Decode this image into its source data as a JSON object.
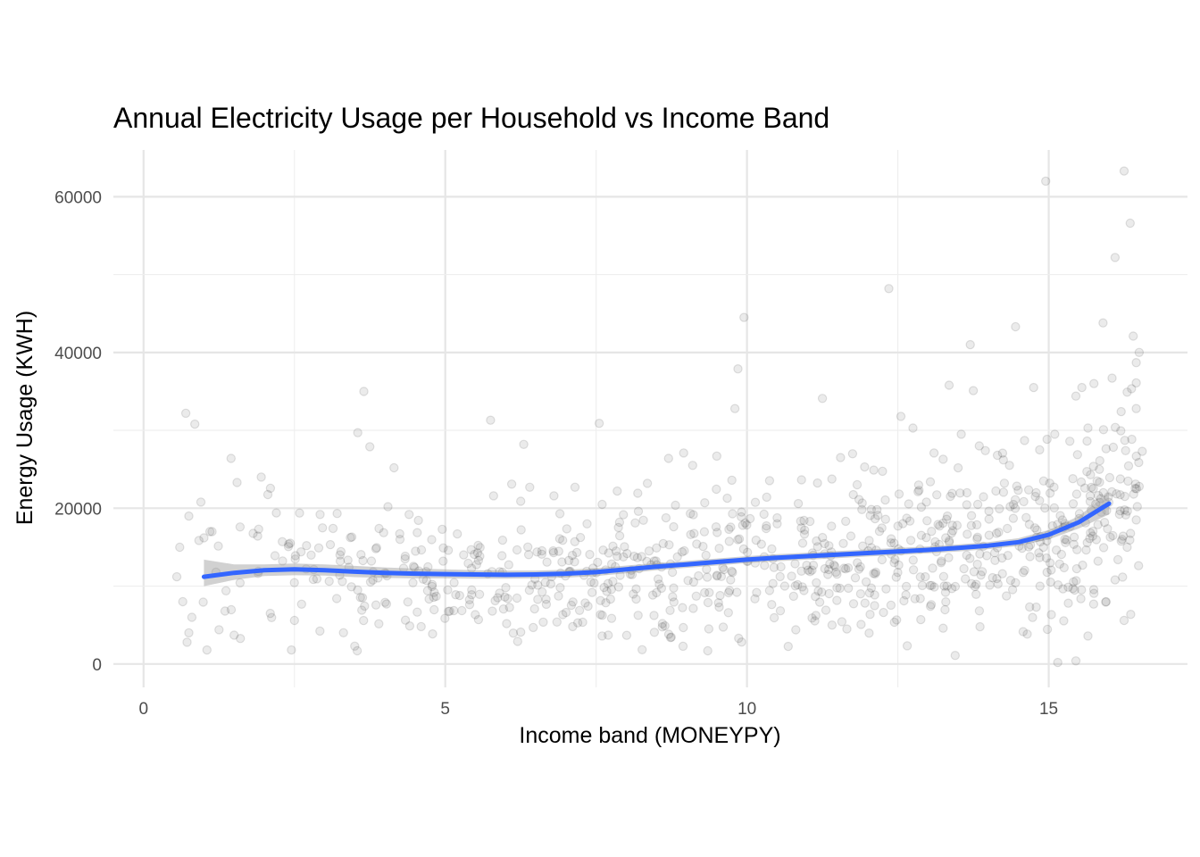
{
  "chart_data": {
    "type": "scatter",
    "title": "Annual Electricity Usage per Household vs Income Band",
    "xlabel": "Income band (MONEYPY)",
    "ylabel": "Energy Usage (KWH)",
    "xlim": [
      -0.5,
      17.3
    ],
    "ylim": [
      -3000,
      66000
    ],
    "x_ticks": [
      0,
      5,
      10,
      15
    ],
    "x_tick_labels": [
      "0",
      "5",
      "10",
      "15"
    ],
    "y_ticks": [
      0,
      20000,
      40000,
      60000
    ],
    "y_tick_labels": [
      "0",
      "20000",
      "40000",
      "60000"
    ],
    "grid": true,
    "point_color": "#000000",
    "point_alpha": 0.08,
    "smooth_color": "#3366FF",
    "band_color": "#999999",
    "smooth": {
      "x": [
        1,
        1.5,
        2,
        2.5,
        3,
        3.5,
        4,
        4.5,
        5,
        5.5,
        6,
        6.5,
        7,
        7.5,
        8,
        8.5,
        9,
        9.5,
        10,
        10.5,
        11,
        11.5,
        12,
        12.5,
        13,
        13.5,
        14,
        14.5,
        15,
        15.5,
        16
      ],
      "y": [
        11200,
        11700,
        12050,
        12150,
        12050,
        11850,
        11700,
        11600,
        11550,
        11500,
        11450,
        11500,
        11600,
        11800,
        12150,
        12500,
        12800,
        13100,
        13400,
        13650,
        13850,
        14050,
        14250,
        14450,
        14650,
        14900,
        15200,
        15650,
        16600,
        18200,
        20600
      ],
      "lower": [
        10000,
        10800,
        11300,
        11400,
        11350,
        11150,
        11050,
        11000,
        11000,
        10950,
        10950,
        11000,
        11100,
        11300,
        11650,
        12050,
        12350,
        12650,
        12950,
        13200,
        13400,
        13600,
        13800,
        14000,
        14200,
        14450,
        14750,
        15150,
        16000,
        17400,
        19200
      ],
      "upper": [
        13400,
        12800,
        12800,
        12900,
        12800,
        12600,
        12400,
        12250,
        12150,
        12050,
        12000,
        12000,
        12100,
        12300,
        12650,
        12950,
        13250,
        13550,
        13850,
        14100,
        14300,
        14500,
        14700,
        14900,
        15100,
        15350,
        15650,
        16150,
        17200,
        19000,
        22000
      ]
    },
    "points": [
      [
        0.7,
        32200
      ],
      [
        0.85,
        30800
      ],
      [
        0.75,
        19000
      ],
      [
        0.6,
        15000
      ],
      [
        0.55,
        11200
      ],
      [
        0.65,
        8000
      ],
      [
        0.8,
        6000
      ],
      [
        0.75,
        4000
      ],
      [
        0.72,
        2800
      ],
      [
        1.05,
        1800
      ],
      [
        0.95,
        20800
      ],
      [
        1.1,
        17000
      ],
      [
        1.0,
        16200
      ],
      [
        1.2,
        11800
      ],
      [
        1.35,
        6800
      ],
      [
        1.45,
        26400
      ],
      [
        1.55,
        23300
      ],
      [
        1.25,
        4400
      ],
      [
        1.5,
        3700
      ],
      [
        1.6,
        17600
      ],
      [
        1.95,
        24000
      ],
      [
        2.2,
        19400
      ],
      [
        2.3,
        15700
      ],
      [
        2.5,
        5600
      ],
      [
        2.45,
        1800
      ],
      [
        2.1,
        6500
      ],
      [
        2.7,
        15200
      ],
      [
        1.9,
        11900
      ],
      [
        3.2,
        8400
      ],
      [
        3.5,
        2300
      ],
      [
        3.55,
        29700
      ],
      [
        3.65,
        35000
      ],
      [
        3.75,
        27900
      ],
      [
        3.45,
        16300
      ],
      [
        3.85,
        14800
      ],
      [
        4.05,
        20200
      ],
      [
        4.15,
        25200
      ],
      [
        4.25,
        16000
      ],
      [
        4.4,
        19200
      ],
      [
        4.0,
        11700
      ],
      [
        4.6,
        4800
      ],
      [
        4.85,
        8700
      ],
      [
        5.05,
        14600
      ],
      [
        5.2,
        16700
      ],
      [
        4.95,
        17300
      ],
      [
        5.55,
        13300
      ],
      [
        5.75,
        31300
      ],
      [
        5.8,
        21600
      ],
      [
        5.55,
        5700
      ],
      [
        5.95,
        15900
      ],
      [
        6.1,
        23100
      ],
      [
        6.25,
        4100
      ],
      [
        6.3,
        28200
      ],
      [
        6.4,
        22700
      ],
      [
        6.2,
        2900
      ],
      [
        6.6,
        14100
      ],
      [
        6.8,
        21600
      ],
      [
        6.9,
        19300
      ],
      [
        7.15,
        22700
      ],
      [
        7.35,
        18000
      ],
      [
        7.6,
        20500
      ],
      [
        7.55,
        30900
      ],
      [
        7.7,
        3700
      ],
      [
        7.6,
        3600
      ],
      [
        7.85,
        22200
      ],
      [
        8.2,
        19600
      ],
      [
        8.35,
        23200
      ],
      [
        8.5,
        14900
      ],
      [
        8.7,
        26400
      ],
      [
        8.95,
        27100
      ],
      [
        9.1,
        25500
      ],
      [
        9.3,
        20700
      ],
      [
        9.5,
        26700
      ],
      [
        9.85,
        37900
      ],
      [
        9.95,
        44500
      ],
      [
        9.8,
        32800
      ],
      [
        9.75,
        23600
      ],
      [
        9.7,
        17300
      ],
      [
        9.35,
        1700
      ],
      [
        10.15,
        15900
      ],
      [
        10.5,
        18000
      ],
      [
        10.85,
        20600
      ],
      [
        11.15,
        15800
      ],
      [
        11.25,
        34100
      ],
      [
        11.4,
        17700
      ],
      [
        11.55,
        26500
      ],
      [
        11.75,
        27000
      ],
      [
        11.95,
        25300
      ],
      [
        12.1,
        24900
      ],
      [
        12.35,
        48200
      ],
      [
        12.55,
        31800
      ],
      [
        12.75,
        30300
      ],
      [
        12.85,
        22300
      ],
      [
        13.1,
        27100
      ],
      [
        13.25,
        26300
      ],
      [
        13.35,
        35800
      ],
      [
        13.55,
        29500
      ],
      [
        13.7,
        41000
      ],
      [
        13.75,
        35100
      ],
      [
        13.85,
        28000
      ],
      [
        13.95,
        27400
      ],
      [
        14.15,
        26800
      ],
      [
        14.35,
        25500
      ],
      [
        14.45,
        43300
      ],
      [
        14.6,
        28700
      ],
      [
        14.75,
        35500
      ],
      [
        14.85,
        27500
      ],
      [
        14.95,
        62000
      ],
      [
        15.1,
        29500
      ],
      [
        15.35,
        28600
      ],
      [
        15.45,
        34400
      ],
      [
        15.55,
        35500
      ],
      [
        15.65,
        30300
      ],
      [
        15.75,
        36000
      ],
      [
        15.9,
        43800
      ],
      [
        16.05,
        36700
      ],
      [
        16.1,
        52200
      ],
      [
        16.2,
        32400
      ],
      [
        16.25,
        63300
      ],
      [
        16.35,
        56600
      ],
      [
        16.4,
        42100
      ],
      [
        16.45,
        38700
      ],
      [
        16.5,
        40000
      ],
      [
        16.45,
        36100
      ],
      [
        16.3,
        34900
      ],
      [
        16.45,
        32800
      ],
      [
        16.55,
        27300
      ],
      [
        16.5,
        22800
      ],
      [
        16.45,
        18500
      ],
      [
        16.3,
        15000
      ],
      [
        16.1,
        10800
      ],
      [
        16.25,
        5600
      ],
      [
        15.95,
        8000
      ],
      [
        15.65,
        3600
      ],
      [
        15.45,
        400
      ],
      [
        15.15,
        200
      ],
      [
        13.45,
        1100
      ],
      [
        13.25,
        4600
      ]
    ]
  }
}
